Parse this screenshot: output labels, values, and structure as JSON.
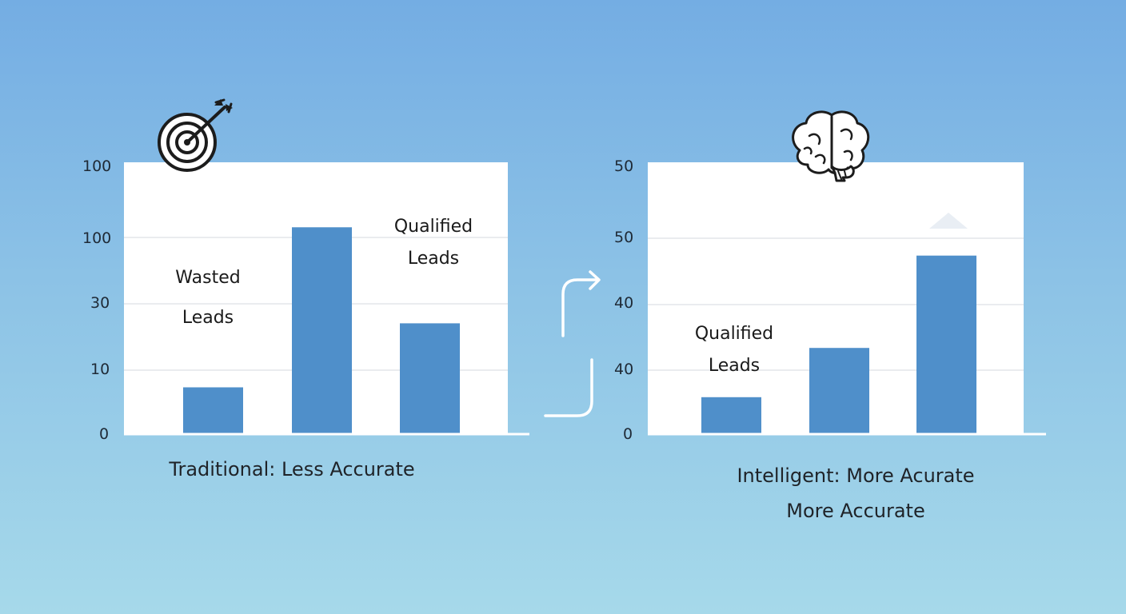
{
  "colors": {
    "bar": "#4f8fca",
    "grid": "#e3e6ea",
    "axis": "#ffffff",
    "icon": "#1c1c1c"
  },
  "icons": {
    "left": "target-with-arrow-icon",
    "right": "brain-icon",
    "transition": "curved-arrow-icon"
  },
  "chart_data": [
    {
      "type": "bar",
      "panel": "left",
      "categories": [
        "",
        "",
        ""
      ],
      "values": [
        19,
        84,
        45
      ],
      "ylim": [
        0,
        100
      ],
      "y_tick_labels": [
        "0",
        "10",
        "30",
        "100",
        "100"
      ],
      "grid": true,
      "annotations": [
        {
          "line1": "Wasted",
          "line2": "Leads"
        },
        {
          "line1": "Qualified",
          "line2": "Leads"
        }
      ],
      "caption": "Traditional: Less Accurate"
    },
    {
      "type": "bar",
      "panel": "right",
      "categories": [
        "",
        "",
        ""
      ],
      "values": [
        6,
        14,
        29
      ],
      "ylim": [
        0,
        40
      ],
      "y_tick_labels": [
        "0",
        "40",
        "40",
        "50",
        "50"
      ],
      "grid": true,
      "annotations": [
        {
          "line1": "Qualified",
          "line2": "Leads"
        }
      ],
      "caption_line1": "Intelligent: More Acurate",
      "caption_line2": "More Accurate"
    }
  ]
}
